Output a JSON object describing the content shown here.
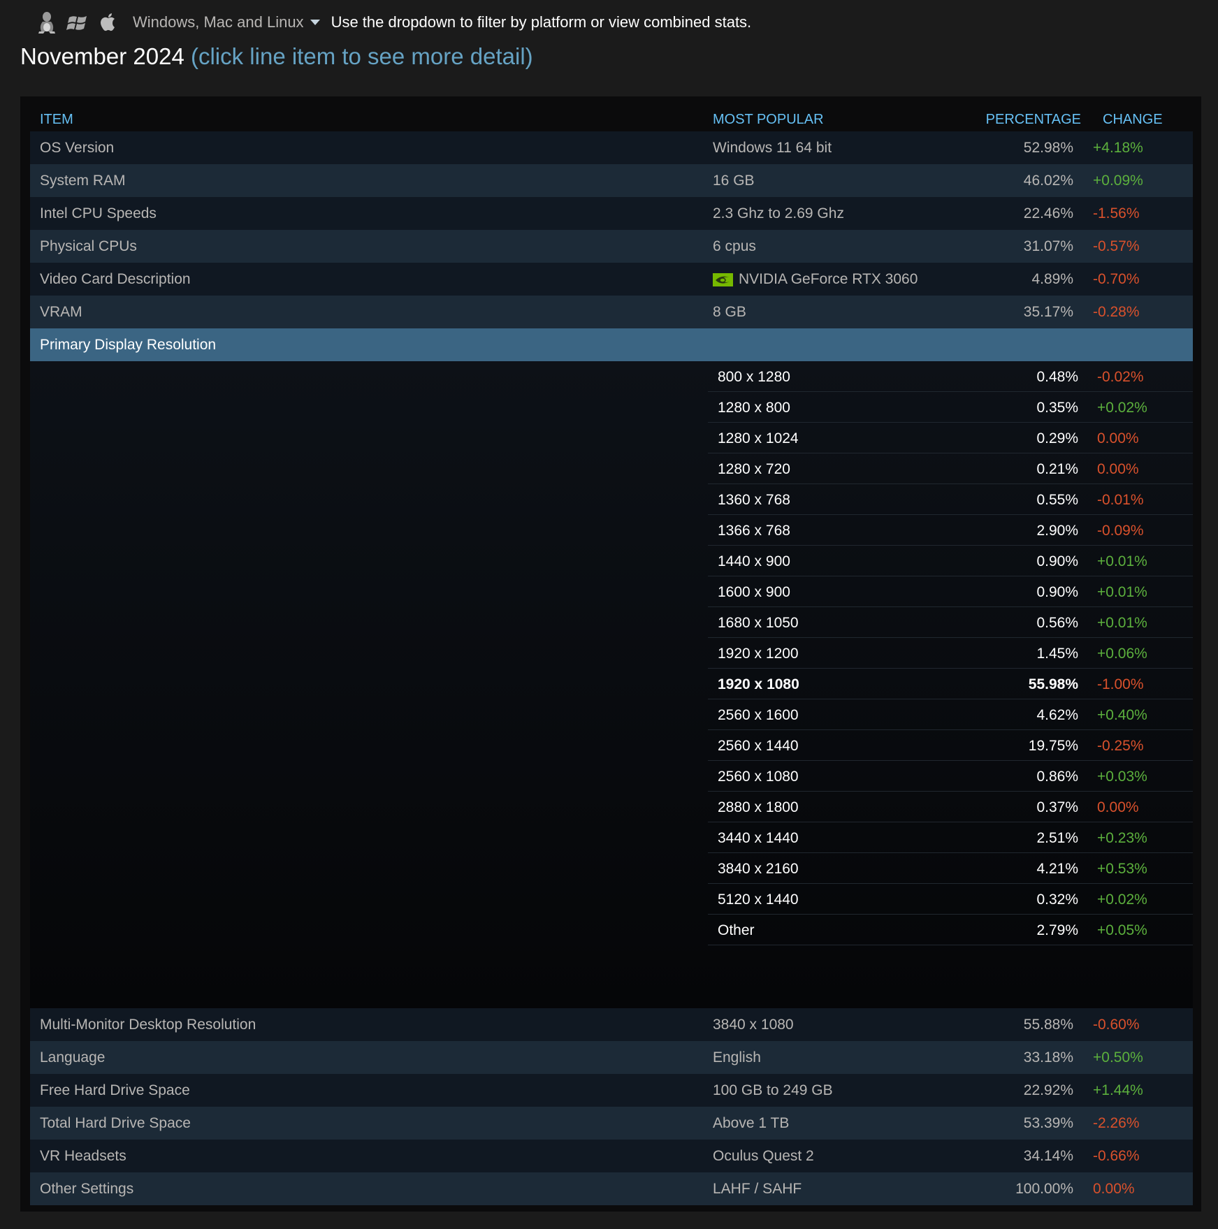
{
  "platform": {
    "icons": [
      "linux-icon",
      "windows-icon",
      "apple-icon"
    ],
    "selected": "Windows, Mac and Linux",
    "hint": "Use the dropdown to filter by platform or view combined stats."
  },
  "title": {
    "month": "November 2024",
    "detail": "(click line item to see more detail)"
  },
  "table": {
    "headers": {
      "item": "ITEM",
      "popular": "MOST POPULAR",
      "percentage": "PERCENTAGE",
      "change": "CHANGE"
    },
    "rows": [
      {
        "item": "OS Version",
        "popular": "Windows 11 64 bit",
        "pct": "52.98%",
        "chg": "+4.18%"
      },
      {
        "item": "System RAM",
        "popular": "16 GB",
        "pct": "46.02%",
        "chg": "+0.09%"
      },
      {
        "item": "Intel CPU Speeds",
        "popular": "2.3 Ghz to 2.69 Ghz",
        "pct": "22.46%",
        "chg": "-1.56%"
      },
      {
        "item": "Physical CPUs",
        "popular": "6 cpus",
        "pct": "31.07%",
        "chg": "-0.57%"
      },
      {
        "item": "Video Card Description",
        "popular": "NVIDIA GeForce RTX 3060",
        "pct": "4.89%",
        "chg": "-0.70%"
      },
      {
        "item": "VRAM",
        "popular": "8 GB",
        "pct": "35.17%",
        "chg": "-0.28%"
      }
    ],
    "expanded": {
      "item": "Primary Display Resolution",
      "sub": [
        {
          "res": "800 x 1280",
          "pct": "0.48%",
          "chg": "-0.02%"
        },
        {
          "res": "1280 x 800",
          "pct": "0.35%",
          "chg": "+0.02%"
        },
        {
          "res": "1280 x 1024",
          "pct": "0.29%",
          "chg": "0.00%"
        },
        {
          "res": "1280 x 720",
          "pct": "0.21%",
          "chg": "0.00%"
        },
        {
          "res": "1360 x 768",
          "pct": "0.55%",
          "chg": "-0.01%"
        },
        {
          "res": "1366 x 768",
          "pct": "2.90%",
          "chg": "-0.09%"
        },
        {
          "res": "1440 x 900",
          "pct": "0.90%",
          "chg": "+0.01%"
        },
        {
          "res": "1600 x 900",
          "pct": "0.90%",
          "chg": "+0.01%"
        },
        {
          "res": "1680 x 1050",
          "pct": "0.56%",
          "chg": "+0.01%"
        },
        {
          "res": "1920 x 1200",
          "pct": "1.45%",
          "chg": "+0.06%"
        },
        {
          "res": "1920 x 1080",
          "pct": "55.98%",
          "chg": "-1.00%",
          "top": true
        },
        {
          "res": "2560 x 1600",
          "pct": "4.62%",
          "chg": "+0.40%"
        },
        {
          "res": "2560 x 1440",
          "pct": "19.75%",
          "chg": "-0.25%"
        },
        {
          "res": "2560 x 1080",
          "pct": "0.86%",
          "chg": "+0.03%"
        },
        {
          "res": "2880 x 1800",
          "pct": "0.37%",
          "chg": "0.00%"
        },
        {
          "res": "3440 x 1440",
          "pct": "2.51%",
          "chg": "+0.23%"
        },
        {
          "res": "3840 x 2160",
          "pct": "4.21%",
          "chg": "+0.53%"
        },
        {
          "res": "5120 x 1440",
          "pct": "0.32%",
          "chg": "+0.02%"
        },
        {
          "res": "Other",
          "pct": "2.79%",
          "chg": "+0.05%"
        }
      ]
    },
    "rows_after": [
      {
        "item": "Multi-Monitor Desktop Resolution",
        "popular": "3840 x 1080",
        "pct": "55.88%",
        "chg": "-0.60%"
      },
      {
        "item": "Language",
        "popular": "English",
        "pct": "33.18%",
        "chg": "+0.50%"
      },
      {
        "item": "Free Hard Drive Space",
        "popular": "100 GB to 249 GB",
        "pct": "22.92%",
        "chg": "+1.44%"
      },
      {
        "item": "Total Hard Drive Space",
        "popular": "Above 1 TB",
        "pct": "53.39%",
        "chg": "-2.26%"
      },
      {
        "item": "VR Headsets",
        "popular": "Oculus Quest 2",
        "pct": "34.14%",
        "chg": "-0.66%"
      },
      {
        "item": "Other Settings",
        "popular": "LAHF / SAHF",
        "pct": "100.00%",
        "chg": "0.00%"
      }
    ]
  },
  "colors": {
    "positive": "#5cb03d",
    "negative": "#d9512c",
    "header": "#66c0f4",
    "active_row": "#3b6583"
  }
}
